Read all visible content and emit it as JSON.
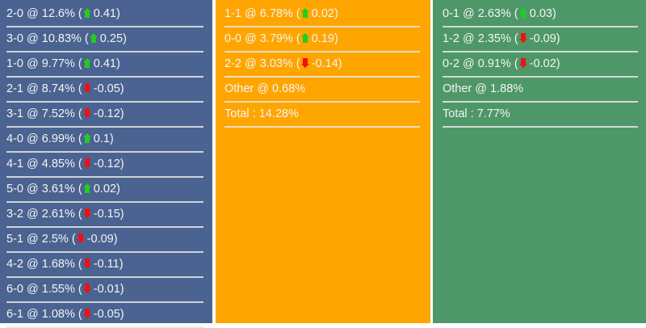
{
  "colors": {
    "home": "#4a6390",
    "draw": "#ffa500",
    "away": "#4e9768",
    "up": "#22cc22",
    "down": "#ee1111"
  },
  "columns": [
    {
      "name": "home-wins",
      "rows": [
        {
          "score": "2-0",
          "pct": "12.6%",
          "dir": "up",
          "change": "0.41"
        },
        {
          "score": "3-0",
          "pct": "10.83%",
          "dir": "up",
          "change": "0.25"
        },
        {
          "score": "1-0",
          "pct": "9.77%",
          "dir": "up",
          "change": "0.41"
        },
        {
          "score": "2-1",
          "pct": "8.74%",
          "dir": "down",
          "change": "-0.05"
        },
        {
          "score": "3-1",
          "pct": "7.52%",
          "dir": "down",
          "change": "-0.12"
        },
        {
          "score": "4-0",
          "pct": "6.99%",
          "dir": "up",
          "change": "0.1"
        },
        {
          "score": "4-1",
          "pct": "4.85%",
          "dir": "down",
          "change": "-0.12"
        },
        {
          "score": "5-0",
          "pct": "3.61%",
          "dir": "up",
          "change": "0.02"
        },
        {
          "score": "3-2",
          "pct": "2.61%",
          "dir": "down",
          "change": "-0.15"
        },
        {
          "score": "5-1",
          "pct": "2.5%",
          "dir": "down",
          "change": "-0.09"
        },
        {
          "score": "4-2",
          "pct": "1.68%",
          "dir": "down",
          "change": "-0.11"
        },
        {
          "score": "6-0",
          "pct": "1.55%",
          "dir": "down",
          "change": "-0.01"
        },
        {
          "score": "6-1",
          "pct": "1.08%",
          "dir": "down",
          "change": "-0.05"
        }
      ]
    },
    {
      "name": "draws",
      "rows": [
        {
          "score": "1-1",
          "pct": "6.78%",
          "dir": "up",
          "change": "0.02"
        },
        {
          "score": "0-0",
          "pct": "3.79%",
          "dir": "up",
          "change": "0.19"
        },
        {
          "score": "2-2",
          "pct": "3.03%",
          "dir": "down",
          "change": "-0.14"
        },
        {
          "text": "Other @ 0.68%"
        },
        {
          "text": "Total : 14.28%"
        }
      ]
    },
    {
      "name": "away-wins",
      "rows": [
        {
          "score": "0-1",
          "pct": "2.63%",
          "dir": "up",
          "change": "0.03"
        },
        {
          "score": "1-2",
          "pct": "2.35%",
          "dir": "down",
          "change": "-0.09"
        },
        {
          "score": "0-2",
          "pct": "0.91%",
          "dir": "down",
          "change": "-0.02"
        },
        {
          "text": "Other @ 1.88%"
        },
        {
          "text": "Total : 7.77%"
        }
      ]
    }
  ]
}
